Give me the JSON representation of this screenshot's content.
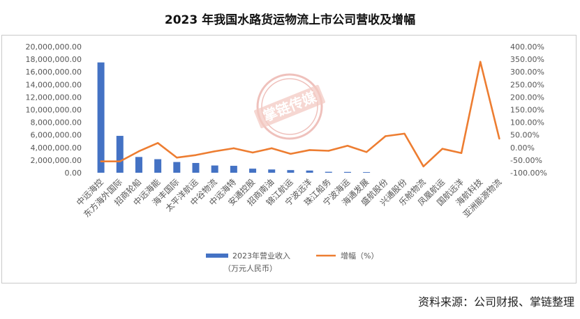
{
  "chart_data": {
    "type": "bar+line",
    "title": "2023 年我国水路货运物流上市公司营收及增幅",
    "categories": [
      "中远海控",
      "东方海外国际",
      "招商轮船",
      "中远海能",
      "海丰国际",
      "太平洋航运",
      "中谷物流",
      "中远海特",
      "安通控股",
      "招商南油",
      "锦江航运",
      "宁波远洋",
      "珠江船务",
      "宁波海运",
      "海通发展",
      "盛航股份",
      "兴通股份",
      "乐舱物流",
      "凤凰航运",
      "国航远洋",
      "海航科技",
      "亚洲能源物流"
    ],
    "series": [
      {
        "name": "2023年营业收入\n（万元人民币）",
        "type": "bar",
        "axis": "left",
        "color": "#4472C4",
        "values": [
          17500000,
          5850000,
          2500000,
          2150000,
          1700000,
          1550000,
          1150000,
          1100000,
          650000,
          520000,
          420000,
          350000,
          150000,
          130000,
          100000,
          0,
          0,
          0,
          0,
          0,
          0,
          0
        ]
      },
      {
        "name": "增幅（%）",
        "type": "line",
        "axis": "right",
        "color": "#ED7D31",
        "values": [
          -55,
          -55,
          -15,
          18,
          -40,
          -30,
          -15,
          -3,
          -20,
          -3,
          -25,
          -10,
          -13,
          7,
          -18,
          45,
          55,
          -75,
          -5,
          -22,
          340,
          35
        ]
      }
    ],
    "y_left": {
      "range": [
        0,
        20000000
      ],
      "ticks": [
        "0.00",
        "2,000,000.00",
        "4,000,000.00",
        "6,000,000.00",
        "8,000,000.00",
        "10,000,000.00",
        "12,000,000.00",
        "14,000,000.00",
        "16,000,000.00",
        "18,000,000.00",
        "20,000,000.00"
      ]
    },
    "y_right": {
      "range": [
        -100,
        400
      ],
      "ticks": [
        "-100.00%",
        "-50.00%",
        "0.00%",
        "50.00%",
        "100.00%",
        "150.00%",
        "200.00%",
        "250.00%",
        "300.00%",
        "350.00%",
        "400.00%"
      ]
    },
    "legend": {
      "placement": "bottom",
      "bar_label_line1": "2023年营业收入",
      "bar_label_line2": "（万元人民币）",
      "line_label": "增幅（%）"
    },
    "grid": false
  },
  "source_note": "资料来源：公司财报、掌链整理",
  "watermark": "掌链传媒"
}
